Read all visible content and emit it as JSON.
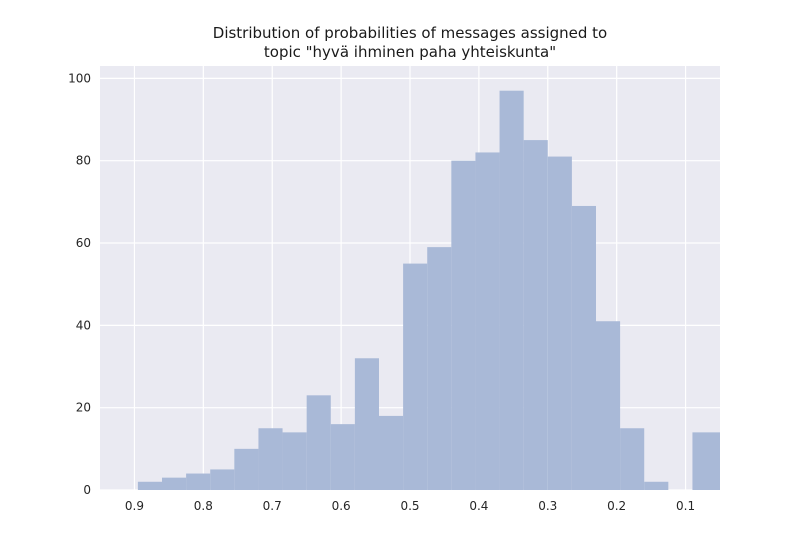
{
  "chart_data": {
    "type": "bar",
    "title_lines": [
      "Distribution of probabilities of messages assigned to",
      "topic \"hyvä ihminen paha yhteiskunta\""
    ],
    "xlabel": "",
    "ylabel": "",
    "x_axis_inverted": true,
    "xlim": [
      0.95,
      0.05
    ],
    "ylim": [
      0,
      103
    ],
    "x_ticks": [
      0.9,
      0.8,
      0.7,
      0.6,
      0.5,
      0.4,
      0.3,
      0.2,
      0.1
    ],
    "x_tick_labels": [
      "0.9",
      "0.8",
      "0.7",
      "0.6",
      "0.5",
      "0.4",
      "0.3",
      "0.2",
      "0.1"
    ],
    "y_ticks": [
      0,
      20,
      40,
      60,
      80,
      100
    ],
    "y_tick_labels": [
      "0",
      "20",
      "40",
      "60",
      "80",
      "100"
    ],
    "grid": true,
    "background": "#eaeaf2",
    "bar_color": "#a9b9d7",
    "bins": [
      {
        "x_start": 0.895,
        "x_end": 0.86,
        "count": 2
      },
      {
        "x_start": 0.86,
        "x_end": 0.825,
        "count": 3
      },
      {
        "x_start": 0.825,
        "x_end": 0.79,
        "count": 4
      },
      {
        "x_start": 0.79,
        "x_end": 0.755,
        "count": 5
      },
      {
        "x_start": 0.755,
        "x_end": 0.72,
        "count": 10
      },
      {
        "x_start": 0.72,
        "x_end": 0.685,
        "count": 15
      },
      {
        "x_start": 0.685,
        "x_end": 0.65,
        "count": 14
      },
      {
        "x_start": 0.65,
        "x_end": 0.615,
        "count": 23
      },
      {
        "x_start": 0.615,
        "x_end": 0.58,
        "count": 16
      },
      {
        "x_start": 0.58,
        "x_end": 0.545,
        "count": 32
      },
      {
        "x_start": 0.545,
        "x_end": 0.51,
        "count": 18
      },
      {
        "x_start": 0.51,
        "x_end": 0.475,
        "count": 55
      },
      {
        "x_start": 0.475,
        "x_end": 0.44,
        "count": 59
      },
      {
        "x_start": 0.44,
        "x_end": 0.405,
        "count": 80
      },
      {
        "x_start": 0.405,
        "x_end": 0.37,
        "count": 82
      },
      {
        "x_start": 0.37,
        "x_end": 0.335,
        "count": 97
      },
      {
        "x_start": 0.335,
        "x_end": 0.3,
        "count": 85
      },
      {
        "x_start": 0.3,
        "x_end": 0.265,
        "count": 81
      },
      {
        "x_start": 0.265,
        "x_end": 0.23,
        "count": 69
      },
      {
        "x_start": 0.23,
        "x_end": 0.195,
        "count": 41
      },
      {
        "x_start": 0.195,
        "x_end": 0.16,
        "count": 15
      },
      {
        "x_start": 0.16,
        "x_end": 0.125,
        "count": 2
      },
      {
        "x_start": 0.125,
        "x_end": 0.09,
        "count": 0
      },
      {
        "x_start": 0.09,
        "x_end": 0.05,
        "count": 14
      }
    ]
  }
}
